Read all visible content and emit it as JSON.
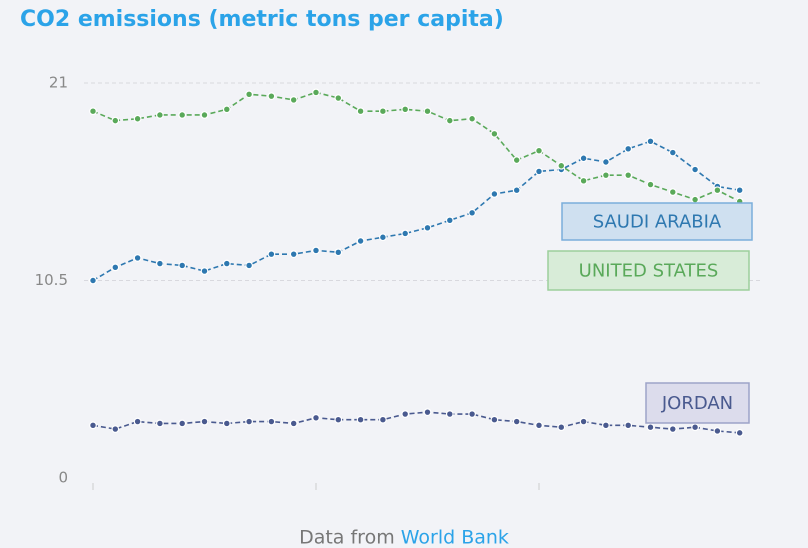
{
  "chart_data": {
    "type": "line",
    "title": "CO2 emissions (metric tons per capita)",
    "categories": [
      null,
      null,
      null,
      null,
      null,
      null,
      null,
      null,
      null,
      null,
      null,
      null,
      null,
      null,
      null,
      null,
      null,
      null,
      null,
      null,
      null,
      null,
      null,
      null,
      null,
      null,
      null,
      null,
      null,
      null
    ],
    "series": [
      {
        "name": "SAUDI ARABIA",
        "color": "#2e78b0",
        "values": [
          10.5,
          11.2,
          11.7,
          11.4,
          11.3,
          11.0,
          11.4,
          11.3,
          11.9,
          11.9,
          12.1,
          12.0,
          12.6,
          12.8,
          13.0,
          13.3,
          13.7,
          14.1,
          15.1,
          15.3,
          16.3,
          16.4,
          17.0,
          16.8,
          17.5,
          17.9,
          17.3,
          16.4,
          15.5,
          15.3
        ]
      },
      {
        "name": "UNITED STATES",
        "color": "#5aa95a",
        "values": [
          19.5,
          19.0,
          19.1,
          19.3,
          19.3,
          19.3,
          19.6,
          20.4,
          20.3,
          20.1,
          20.5,
          20.2,
          19.5,
          19.5,
          19.6,
          19.5,
          19.0,
          19.1,
          18.3,
          16.9,
          17.4,
          16.6,
          15.8,
          16.1,
          16.1,
          15.6,
          15.2,
          14.8,
          15.3,
          14.7
        ]
      },
      {
        "name": "JORDAN",
        "color": "#4a5a8f",
        "values": [
          2.8,
          2.6,
          3.0,
          2.9,
          2.9,
          3.0,
          2.9,
          3.0,
          3.0,
          2.9,
          3.2,
          3.1,
          3.1,
          3.1,
          3.4,
          3.5,
          3.4,
          3.4,
          3.1,
          3.0,
          2.8,
          2.7,
          3.0,
          2.8,
          2.8,
          2.7,
          2.6,
          2.7,
          2.5,
          2.4
        ]
      }
    ],
    "ylim": [
      0,
      21
    ],
    "yticks": [
      0,
      10.5,
      21
    ],
    "grid": true,
    "source": {
      "prefix": "Data from",
      "name": "World Bank"
    }
  }
}
